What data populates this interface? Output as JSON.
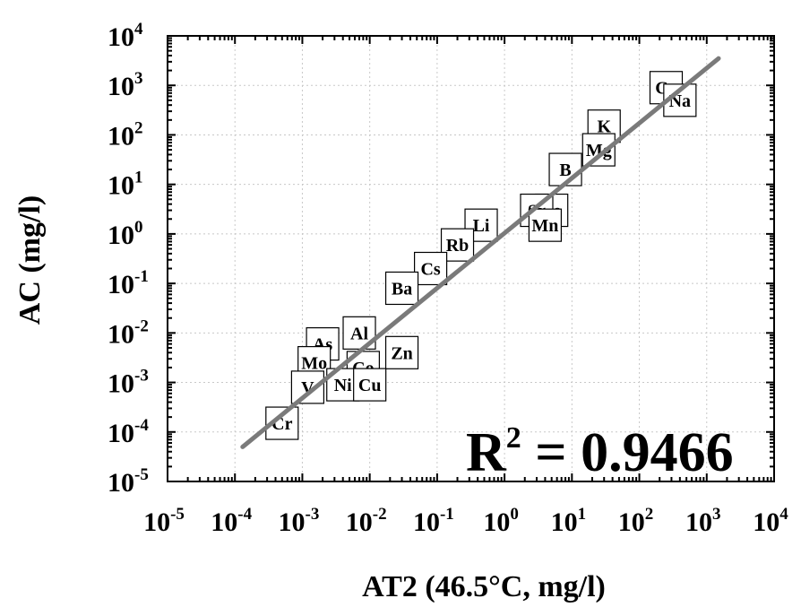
{
  "chart_data": {
    "type": "scatter",
    "title": "",
    "xlabel": "AT2 (46.5°C, mg/l)",
    "ylabel": "AC (mg/l)",
    "x_scale": "log",
    "y_scale": "log",
    "xlim": [
      1e-05,
      10000.0
    ],
    "ylim": [
      1e-05,
      10000.0
    ],
    "x_ticks": [
      {
        "base": "10",
        "exp": "-5"
      },
      {
        "base": "10",
        "exp": "-4"
      },
      {
        "base": "10",
        "exp": "-3"
      },
      {
        "base": "10",
        "exp": "-2"
      },
      {
        "base": "10",
        "exp": "-1"
      },
      {
        "base": "10",
        "exp": "0"
      },
      {
        "base": "10",
        "exp": "1"
      },
      {
        "base": "10",
        "exp": "2"
      },
      {
        "base": "10",
        "exp": "3"
      },
      {
        "base": "10",
        "exp": "4"
      }
    ],
    "y_ticks": [
      {
        "base": "10",
        "exp": "-5"
      },
      {
        "base": "10",
        "exp": "-4"
      },
      {
        "base": "10",
        "exp": "-3"
      },
      {
        "base": "10",
        "exp": "-2"
      },
      {
        "base": "10",
        "exp": "-1"
      },
      {
        "base": "10",
        "exp": "0"
      },
      {
        "base": "10",
        "exp": "1"
      },
      {
        "base": "10",
        "exp": "2"
      },
      {
        "base": "10",
        "exp": "3"
      },
      {
        "base": "10",
        "exp": "4"
      }
    ],
    "grid": true,
    "points": [
      {
        "label": "Ca",
        "x": 250,
        "y": 900
      },
      {
        "label": "Na",
        "x": 400,
        "y": 500
      },
      {
        "label": "K",
        "x": 30,
        "y": 150
      },
      {
        "label": "Mg",
        "x": 25,
        "y": 50
      },
      {
        "label": "B",
        "x": 8,
        "y": 20
      },
      {
        "label": "Fe",
        "x": 5,
        "y": 3
      },
      {
        "label": "Sr",
        "x": 3,
        "y": 3
      },
      {
        "label": "Mn",
        "x": 4,
        "y": 1.5
      },
      {
        "label": "Li",
        "x": 0.45,
        "y": 1.5
      },
      {
        "label": "Rb",
        "x": 0.2,
        "y": 0.6
      },
      {
        "label": "Cs",
        "x": 0.08,
        "y": 0.2
      },
      {
        "label": "Ba",
        "x": 0.03,
        "y": 0.08
      },
      {
        "label": "Al",
        "x": 0.007,
        "y": 0.01
      },
      {
        "label": "As",
        "x": 0.002,
        "y": 0.006
      },
      {
        "label": "Zn",
        "x": 0.03,
        "y": 0.004
      },
      {
        "label": "Mo",
        "x": 0.0015,
        "y": 0.0025
      },
      {
        "label": "Co",
        "x": 0.008,
        "y": 0.002
      },
      {
        "label": "Ni",
        "x": 0.004,
        "y": 0.0009
      },
      {
        "label": "Cu",
        "x": 0.01,
        "y": 0.0009
      },
      {
        "label": "V",
        "x": 0.0012,
        "y": 0.0008
      },
      {
        "label": "Cr",
        "x": 0.0005,
        "y": 0.00015
      }
    ],
    "fit_line": {
      "x": [
        0.00013,
        1500
      ],
      "y": [
        5e-05,
        3500
      ]
    },
    "annotation": {
      "base": "R",
      "exp": "2",
      "text": " = 0.9466"
    }
  }
}
